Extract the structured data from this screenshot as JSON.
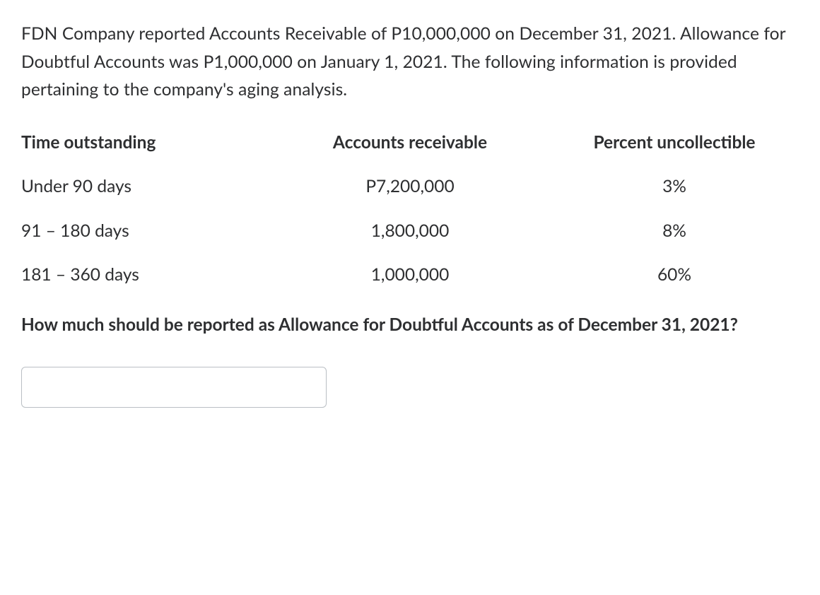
{
  "intro_text": "FDN Company reported Accounts Receivable of P10,000,000 on December 31, 2021. Allowance for Doubtful Accounts was P1,000,000 on January 1, 2021. The following information is provided pertaining to the company's aging analysis.",
  "table": {
    "headers": {
      "time": "Time outstanding",
      "ar": "Accounts receivable",
      "pct": "Percent uncollectible"
    },
    "rows": [
      {
        "time": "Under 90 days",
        "ar": "P7,200,000",
        "pct": "3%"
      },
      {
        "time": "91 – 180 days",
        "ar": "1,800,000",
        "pct": "8%"
      },
      {
        "time": "181 – 360 days",
        "ar": "1,000,000",
        "pct": "60%"
      }
    ]
  },
  "question_text": "How much should be reported as Allowance for Doubtful Accounts as of December 31, 2021?",
  "answer_value": ""
}
